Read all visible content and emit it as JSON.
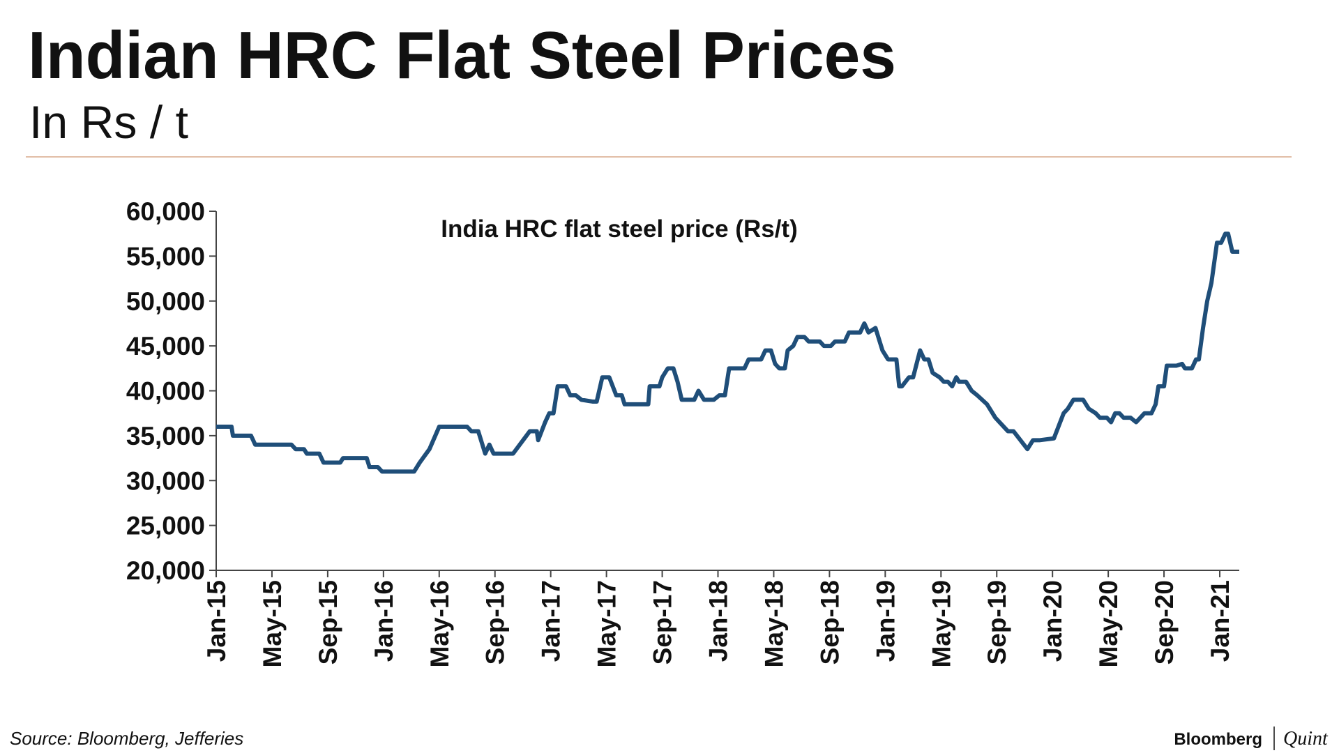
{
  "header": {
    "title": "Indian HRC Flat Steel Prices",
    "subtitle": "In Rs / t"
  },
  "chart_data": {
    "type": "line",
    "annotation": "India HRC flat steel price (Rs/t)",
    "color": "#1f4e79",
    "x": [
      0,
      1.1,
      1.2,
      2.5,
      2.8,
      5.4,
      5.7,
      6.3,
      6.5,
      7.4,
      7.7,
      8.9,
      9.1,
      10.8,
      11.0,
      11.6,
      11.9,
      14.2,
      14.6,
      15.3,
      16.0,
      18.0,
      18.3,
      18.8,
      19.3,
      19.6,
      19.9,
      21.3,
      22.5,
      23.0,
      23.1,
      23.6,
      23.9,
      24.2,
      24.5,
      25.1,
      25.4,
      25.8,
      26.2,
      27.0,
      27.3,
      27.7,
      28.2,
      28.7,
      29.1,
      29.3,
      31.0,
      31.1,
      31.8,
      32.0,
      32.4,
      32.8,
      33.1,
      33.4,
      34.3,
      34.6,
      35.0,
      35.7,
      36.1,
      36.5,
      36.8,
      37.9,
      38.2,
      39.1,
      39.4,
      39.8,
      40.1,
      40.4,
      40.8,
      41.0,
      41.4,
      41.7,
      42.2,
      42.5,
      43.3,
      43.6,
      44.1,
      44.4,
      45.1,
      45.4,
      46.2,
      46.5,
      46.8,
      47.3,
      47.8,
      48.2,
      48.8,
      49.0,
      49.2,
      49.7,
      50.0,
      50.5,
      50.8,
      51.1,
      51.4,
      51.9,
      52.2,
      52.5,
      52.8,
      53.1,
      53.3,
      53.8,
      54.2,
      54.6,
      55.3,
      55.9,
      56.2,
      56.8,
      57.2,
      57.7,
      58.2,
      58.6,
      59.1,
      60.1,
      60.3,
      60.8,
      61.1,
      61.5,
      62.2,
      62.6,
      63.1,
      63.4,
      63.9,
      64.2,
      64.5,
      64.8,
      65.1,
      65.6,
      66.0,
      66.6,
      67.1,
      67.4,
      67.6,
      68.0,
      68.2,
      68.9,
      69.3,
      69.5,
      70.0,
      70.3,
      70.5,
      70.8,
      71.1,
      71.4,
      71.8,
      72.1,
      72.4,
      72.6,
      72.9,
      73.4
    ],
    "values": [
      36000,
      36000,
      35000,
      35000,
      34000,
      34000,
      33500,
      33500,
      33000,
      33000,
      32000,
      32000,
      32500,
      32500,
      31500,
      31500,
      31000,
      31000,
      32000,
      33500,
      36000,
      36000,
      35500,
      35500,
      33000,
      34000,
      33000,
      33000,
      35500,
      35500,
      34500,
      36500,
      37500,
      37500,
      40500,
      40500,
      39500,
      39500,
      39000,
      38800,
      38800,
      41500,
      41500,
      39500,
      39500,
      38500,
      38500,
      40500,
      40500,
      41500,
      42500,
      42500,
      41000,
      39000,
      39000,
      40000,
      39000,
      39000,
      39500,
      39500,
      42500,
      42500,
      43500,
      43500,
      44500,
      44500,
      43000,
      42500,
      42500,
      44500,
      45000,
      46000,
      46000,
      45500,
      45500,
      45000,
      45000,
      45500,
      45500,
      46500,
      46500,
      47500,
      46500,
      47000,
      44500,
      43500,
      43500,
      40500,
      40500,
      41500,
      41500,
      44500,
      43500,
      43500,
      42000,
      41500,
      41000,
      41000,
      40500,
      41500,
      41000,
      41000,
      40000,
      39500,
      38500,
      37000,
      36500,
      35500,
      35500,
      34500,
      33500,
      34500,
      34500,
      34700,
      35500,
      37500,
      38000,
      39000,
      39000,
      38000,
      37500,
      37000,
      37000,
      36500,
      37500,
      37500,
      37000,
      37000,
      36500,
      37500,
      37500,
      38500,
      40500,
      40500,
      42800,
      42800,
      43000,
      42500,
      42500,
      43500,
      43500,
      47000,
      50000,
      52000,
      56500,
      56500,
      57500,
      57500,
      55500,
      55500
    ],
    "xlim": [
      0,
      73.4
    ],
    "xticks": [
      {
        "value": 0,
        "label": "Jan-15"
      },
      {
        "value": 4,
        "label": "May-15"
      },
      {
        "value": 8,
        "label": "Sep-15"
      },
      {
        "value": 12,
        "label": "Jan-16"
      },
      {
        "value": 16,
        "label": "May-16"
      },
      {
        "value": 20,
        "label": "Sep-16"
      },
      {
        "value": 24,
        "label": "Jan-17"
      },
      {
        "value": 28,
        "label": "May-17"
      },
      {
        "value": 32,
        "label": "Sep-17"
      },
      {
        "value": 36,
        "label": "Jan-18"
      },
      {
        "value": 40,
        "label": "May-18"
      },
      {
        "value": 44,
        "label": "Sep-18"
      },
      {
        "value": 48,
        "label": "Jan-19"
      },
      {
        "value": 52,
        "label": "May-19"
      },
      {
        "value": 56,
        "label": "Sep-19"
      },
      {
        "value": 60,
        "label": "Jan-20"
      },
      {
        "value": 64,
        "label": "May-20"
      },
      {
        "value": 68,
        "label": "Sep-20"
      },
      {
        "value": 72,
        "label": "Jan-21"
      }
    ],
    "ylim": [
      20000,
      60000
    ],
    "yticks": [
      {
        "value": 20000,
        "label": "20,000"
      },
      {
        "value": 25000,
        "label": "25,000"
      },
      {
        "value": 30000,
        "label": "30,000"
      },
      {
        "value": 35000,
        "label": "35,000"
      },
      {
        "value": 40000,
        "label": "40,000"
      },
      {
        "value": 45000,
        "label": "45,000"
      },
      {
        "value": 50000,
        "label": "50,000"
      },
      {
        "value": 55000,
        "label": "55,000"
      },
      {
        "value": 60000,
        "label": "60,000"
      }
    ],
    "grid": false
  },
  "footer": {
    "source": "Source: Bloomberg, Jefferies",
    "brand": "Bloomberg",
    "brand2": "Quint"
  }
}
